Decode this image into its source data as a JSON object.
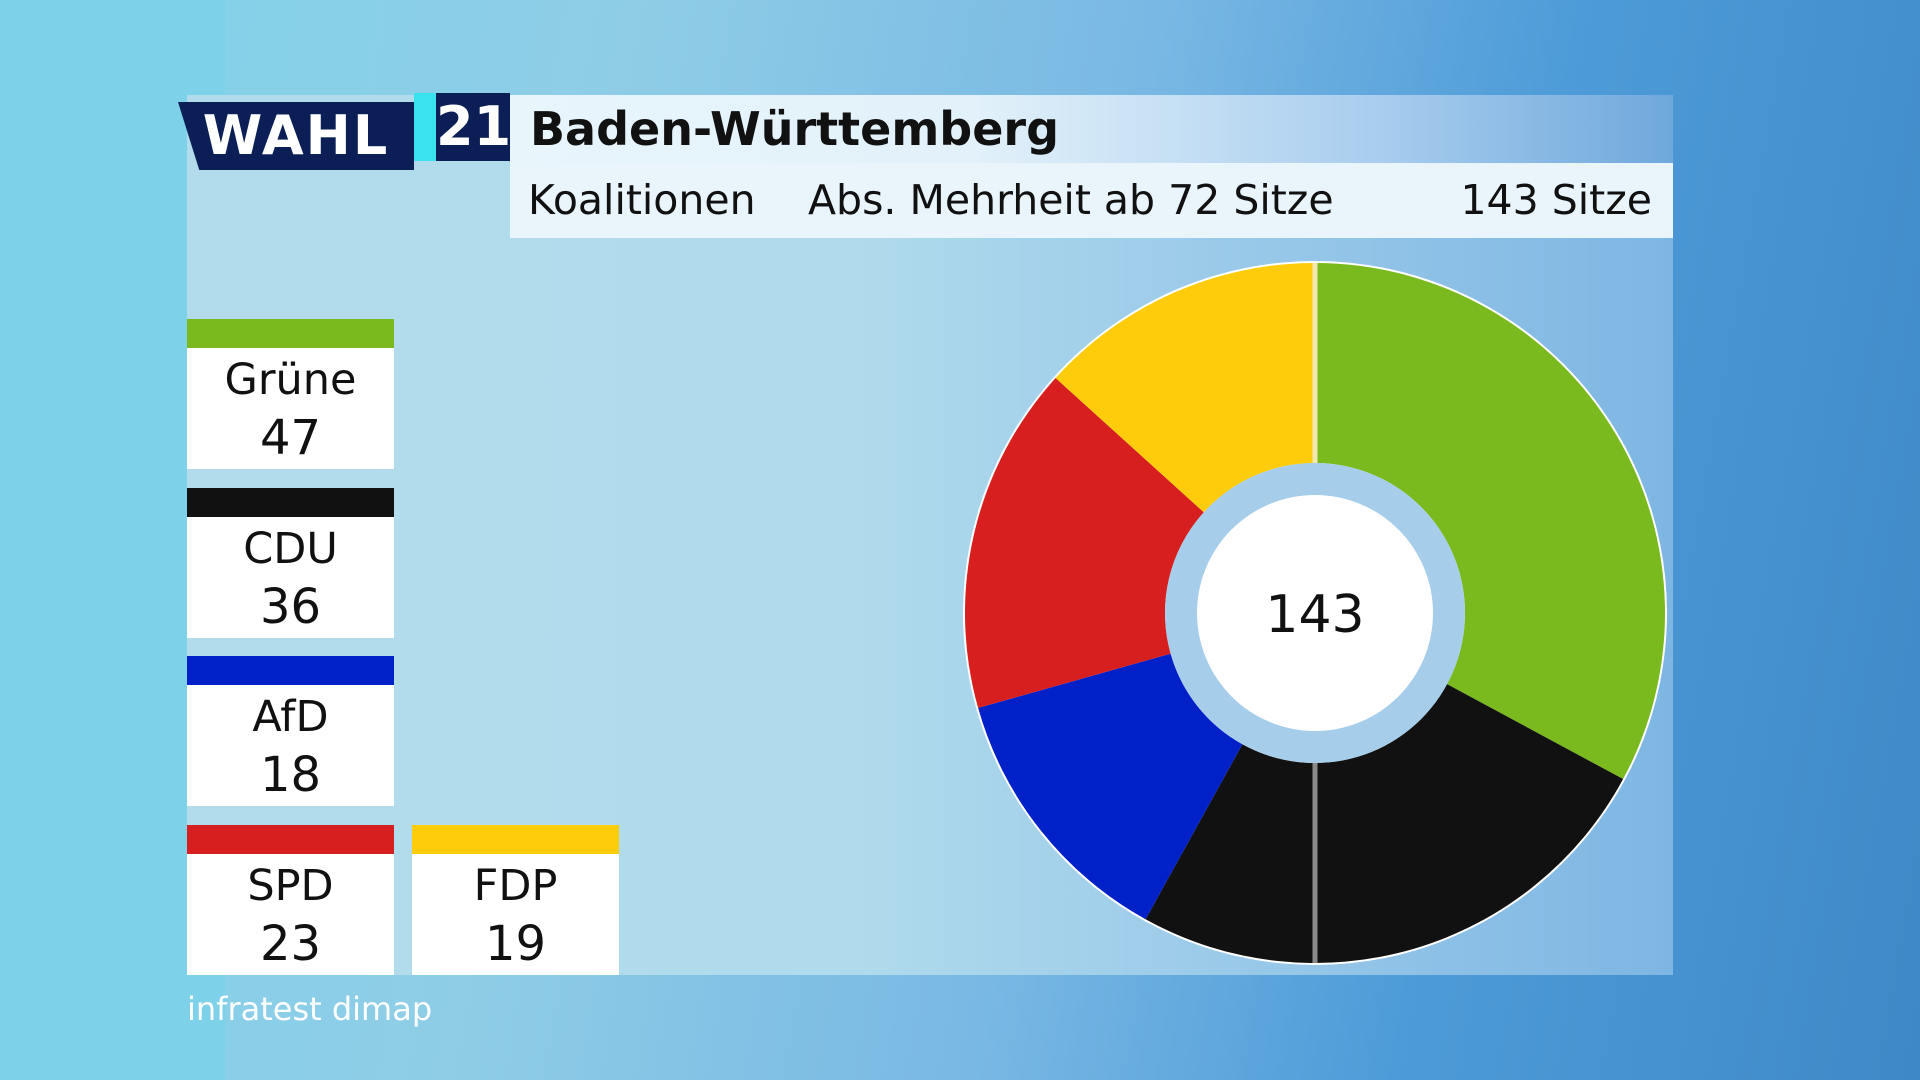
{
  "header": {
    "logo_text": "WAHL",
    "logo_year": "21",
    "title": "Baden-Württemberg",
    "subtitle_left": "Koalitionen",
    "subtitle_mid": "Abs. Mehrheit ab 72 Sitze",
    "subtitle_right": "143 Sitze"
  },
  "source": "infratest dimap",
  "colors": {
    "Grüne": "#7aba1e",
    "CDU": "#111111",
    "AfD": "#0021c8",
    "SPD": "#d71f1f",
    "FDP": "#ffcc0b"
  },
  "chart_data": {
    "type": "pie",
    "variant": "donut",
    "center_label": "143",
    "total": 143,
    "categories": [
      "Grüne",
      "CDU",
      "AfD",
      "SPD",
      "FDP"
    ],
    "values": [
      47,
      36,
      18,
      23,
      19
    ],
    "colors": [
      "#7aba1e",
      "#111111",
      "#0021c8",
      "#d71f1f",
      "#ffcc0b"
    ],
    "legend": [
      {
        "name": "Grüne",
        "value": "47"
      },
      {
        "name": "CDU",
        "value": "36"
      },
      {
        "name": "AfD",
        "value": "18"
      },
      {
        "name": "SPD",
        "value": "23"
      },
      {
        "name": "FDP",
        "value": "19"
      }
    ]
  }
}
